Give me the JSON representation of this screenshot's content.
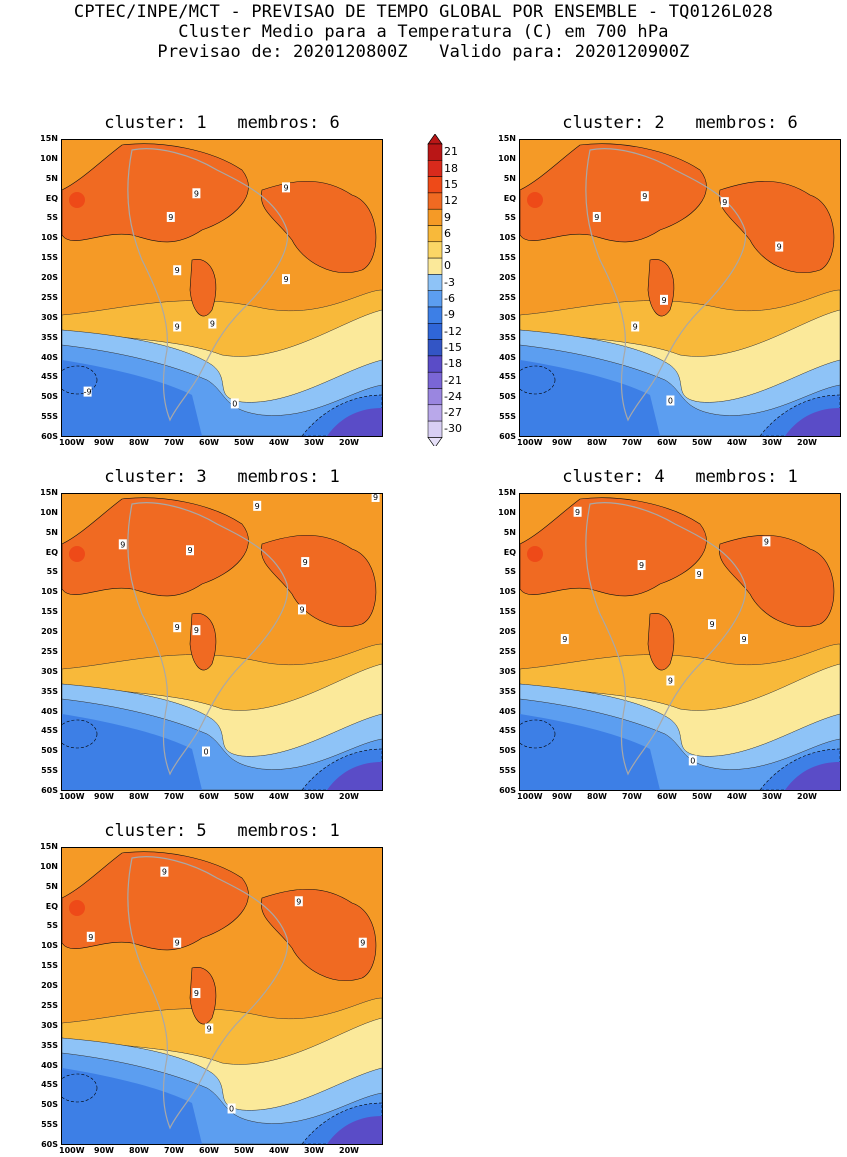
{
  "header": {
    "line1": "CPTEC/INPE/MCT - PREVISAO DE TEMPO GLOBAL POR ENSEMBLE - TQ0126L028",
    "line2": "Cluster Medio para a Temperatura (C) em 700 hPa",
    "line3": "Previsao de: 2020120800Z   Valido para: 2020120900Z"
  },
  "panels": [
    {
      "title": "cluster: 1   membros: 6"
    },
    {
      "title": "cluster: 2   membros: 6"
    },
    {
      "title": "cluster: 3   membros: 1"
    },
    {
      "title": "cluster: 4   membros: 1"
    },
    {
      "title": "cluster: 5   membros: 1"
    }
  ],
  "lat_ticks": [
    "15N",
    "10N",
    "5N",
    "EQ",
    "5S",
    "10S",
    "15S",
    "20S",
    "25S",
    "30S",
    "35S",
    "40S",
    "45S",
    "50S",
    "55S",
    "60S"
  ],
  "lon_ticks": [
    "100W",
    "90W",
    "80W",
    "70W",
    "60W",
    "50W",
    "40W",
    "30W",
    "20W"
  ],
  "colorbar": {
    "labels": [
      "21",
      "18",
      "15",
      "12",
      "9",
      "6",
      "3",
      "0",
      "-3",
      "-6",
      "-9",
      "-12",
      "-15",
      "-18",
      "-21",
      "-24",
      "-27",
      "-30"
    ],
    "colors": [
      "#b91616",
      "#d92a1c",
      "#ee4a18",
      "#f06a22",
      "#f59a26",
      "#f8b93a",
      "#fbd666",
      "#fbe99a",
      "#8ec3f7",
      "#5c9ef0",
      "#3d7fe6",
      "#2f66d8",
      "#3355c5",
      "#5a4cc7",
      "#7a66d5",
      "#9a86e0",
      "#b9a8ea",
      "#d8cff4"
    ]
  },
  "colors": {
    "warm_red": "#ee4a18",
    "orange_dark": "#f06a22",
    "orange": "#f59a26",
    "light_orange": "#f8b93a",
    "pale_yellow": "#fbe99a",
    "light_blue": "#8ec3f7",
    "mid_blue": "#5c9ef0",
    "deep_blue": "#3d7fe6",
    "purple": "#5a4cc7",
    "land_outline": "#a8a8a8"
  },
  "contour_labels": {
    "p1": [
      "9",
      "9",
      "9",
      "9",
      "9",
      "9",
      "9",
      "-9",
      "0"
    ],
    "p2": [
      "9",
      "9",
      "9",
      "9",
      "9",
      "9",
      "0"
    ],
    "p3": [
      "9",
      "9",
      "9",
      "9",
      "9",
      "9",
      "9",
      "9",
      "0"
    ],
    "p4": [
      "9",
      "9",
      "9",
      "9",
      "9",
      "9",
      "9",
      "9",
      "0"
    ],
    "p5": [
      "9",
      "9",
      "9",
      "9",
      "9",
      "9",
      "9",
      "9",
      "0"
    ]
  }
}
